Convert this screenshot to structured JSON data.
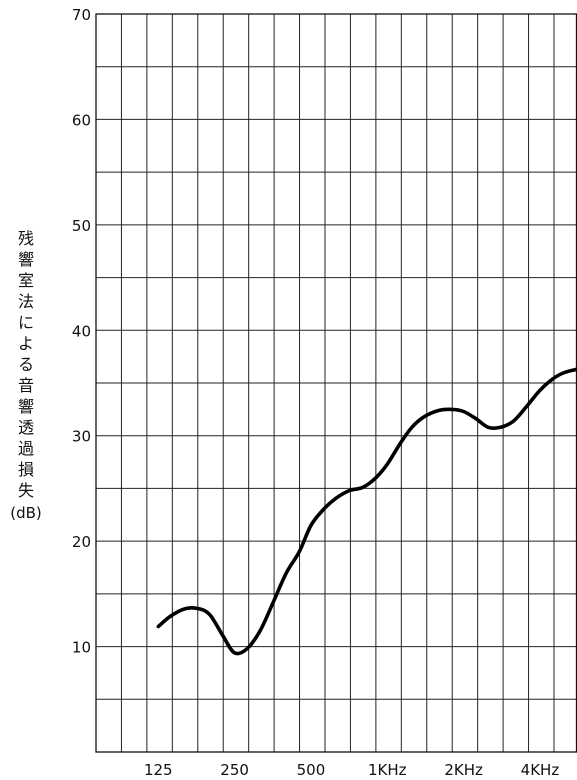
{
  "chart_data": {
    "type": "line",
    "title": "",
    "xlabel": "",
    "ylabel": "残響室法による音響透過損失",
    "ylabel_unit": "(dB)",
    "x_scale": "log",
    "x_ticks": [
      {
        "value": 125,
        "label": "125"
      },
      {
        "value": 250,
        "label": "250"
      },
      {
        "value": 500,
        "label": "500"
      },
      {
        "value": 1000,
        "label": "1KHz"
      },
      {
        "value": 2000,
        "label": "2KHz"
      },
      {
        "value": 4000,
        "label": "4KHz"
      }
    ],
    "xlim": [
      71,
      5600
    ],
    "ylim": [
      0,
      70
    ],
    "y_ticks": [
      10,
      20,
      30,
      40,
      50,
      60,
      70
    ],
    "grid": true,
    "series": [
      {
        "name": "",
        "x": [
          125,
          140,
          160,
          180,
          200,
          225,
          250,
          280,
          315,
          355,
          400,
          450,
          500,
          560,
          630,
          710,
          800,
          900,
          1000,
          1120,
          1250,
          1400,
          1600,
          1800,
          2000,
          2240,
          2500,
          2800,
          3150,
          3550,
          4000,
          4500,
          5000,
          5600
        ],
        "y": [
          11.9,
          12.9,
          13.6,
          13.6,
          13.0,
          11.0,
          9.4,
          9.8,
          11.5,
          14.2,
          17.0,
          19.0,
          21.5,
          23.0,
          24.1,
          24.8,
          25.1,
          26.0,
          27.3,
          29.2,
          30.8,
          31.8,
          32.4,
          32.5,
          32.3,
          31.6,
          30.8,
          30.8,
          31.4,
          32.8,
          34.3,
          35.4,
          36.0,
          36.3
        ]
      }
    ]
  }
}
